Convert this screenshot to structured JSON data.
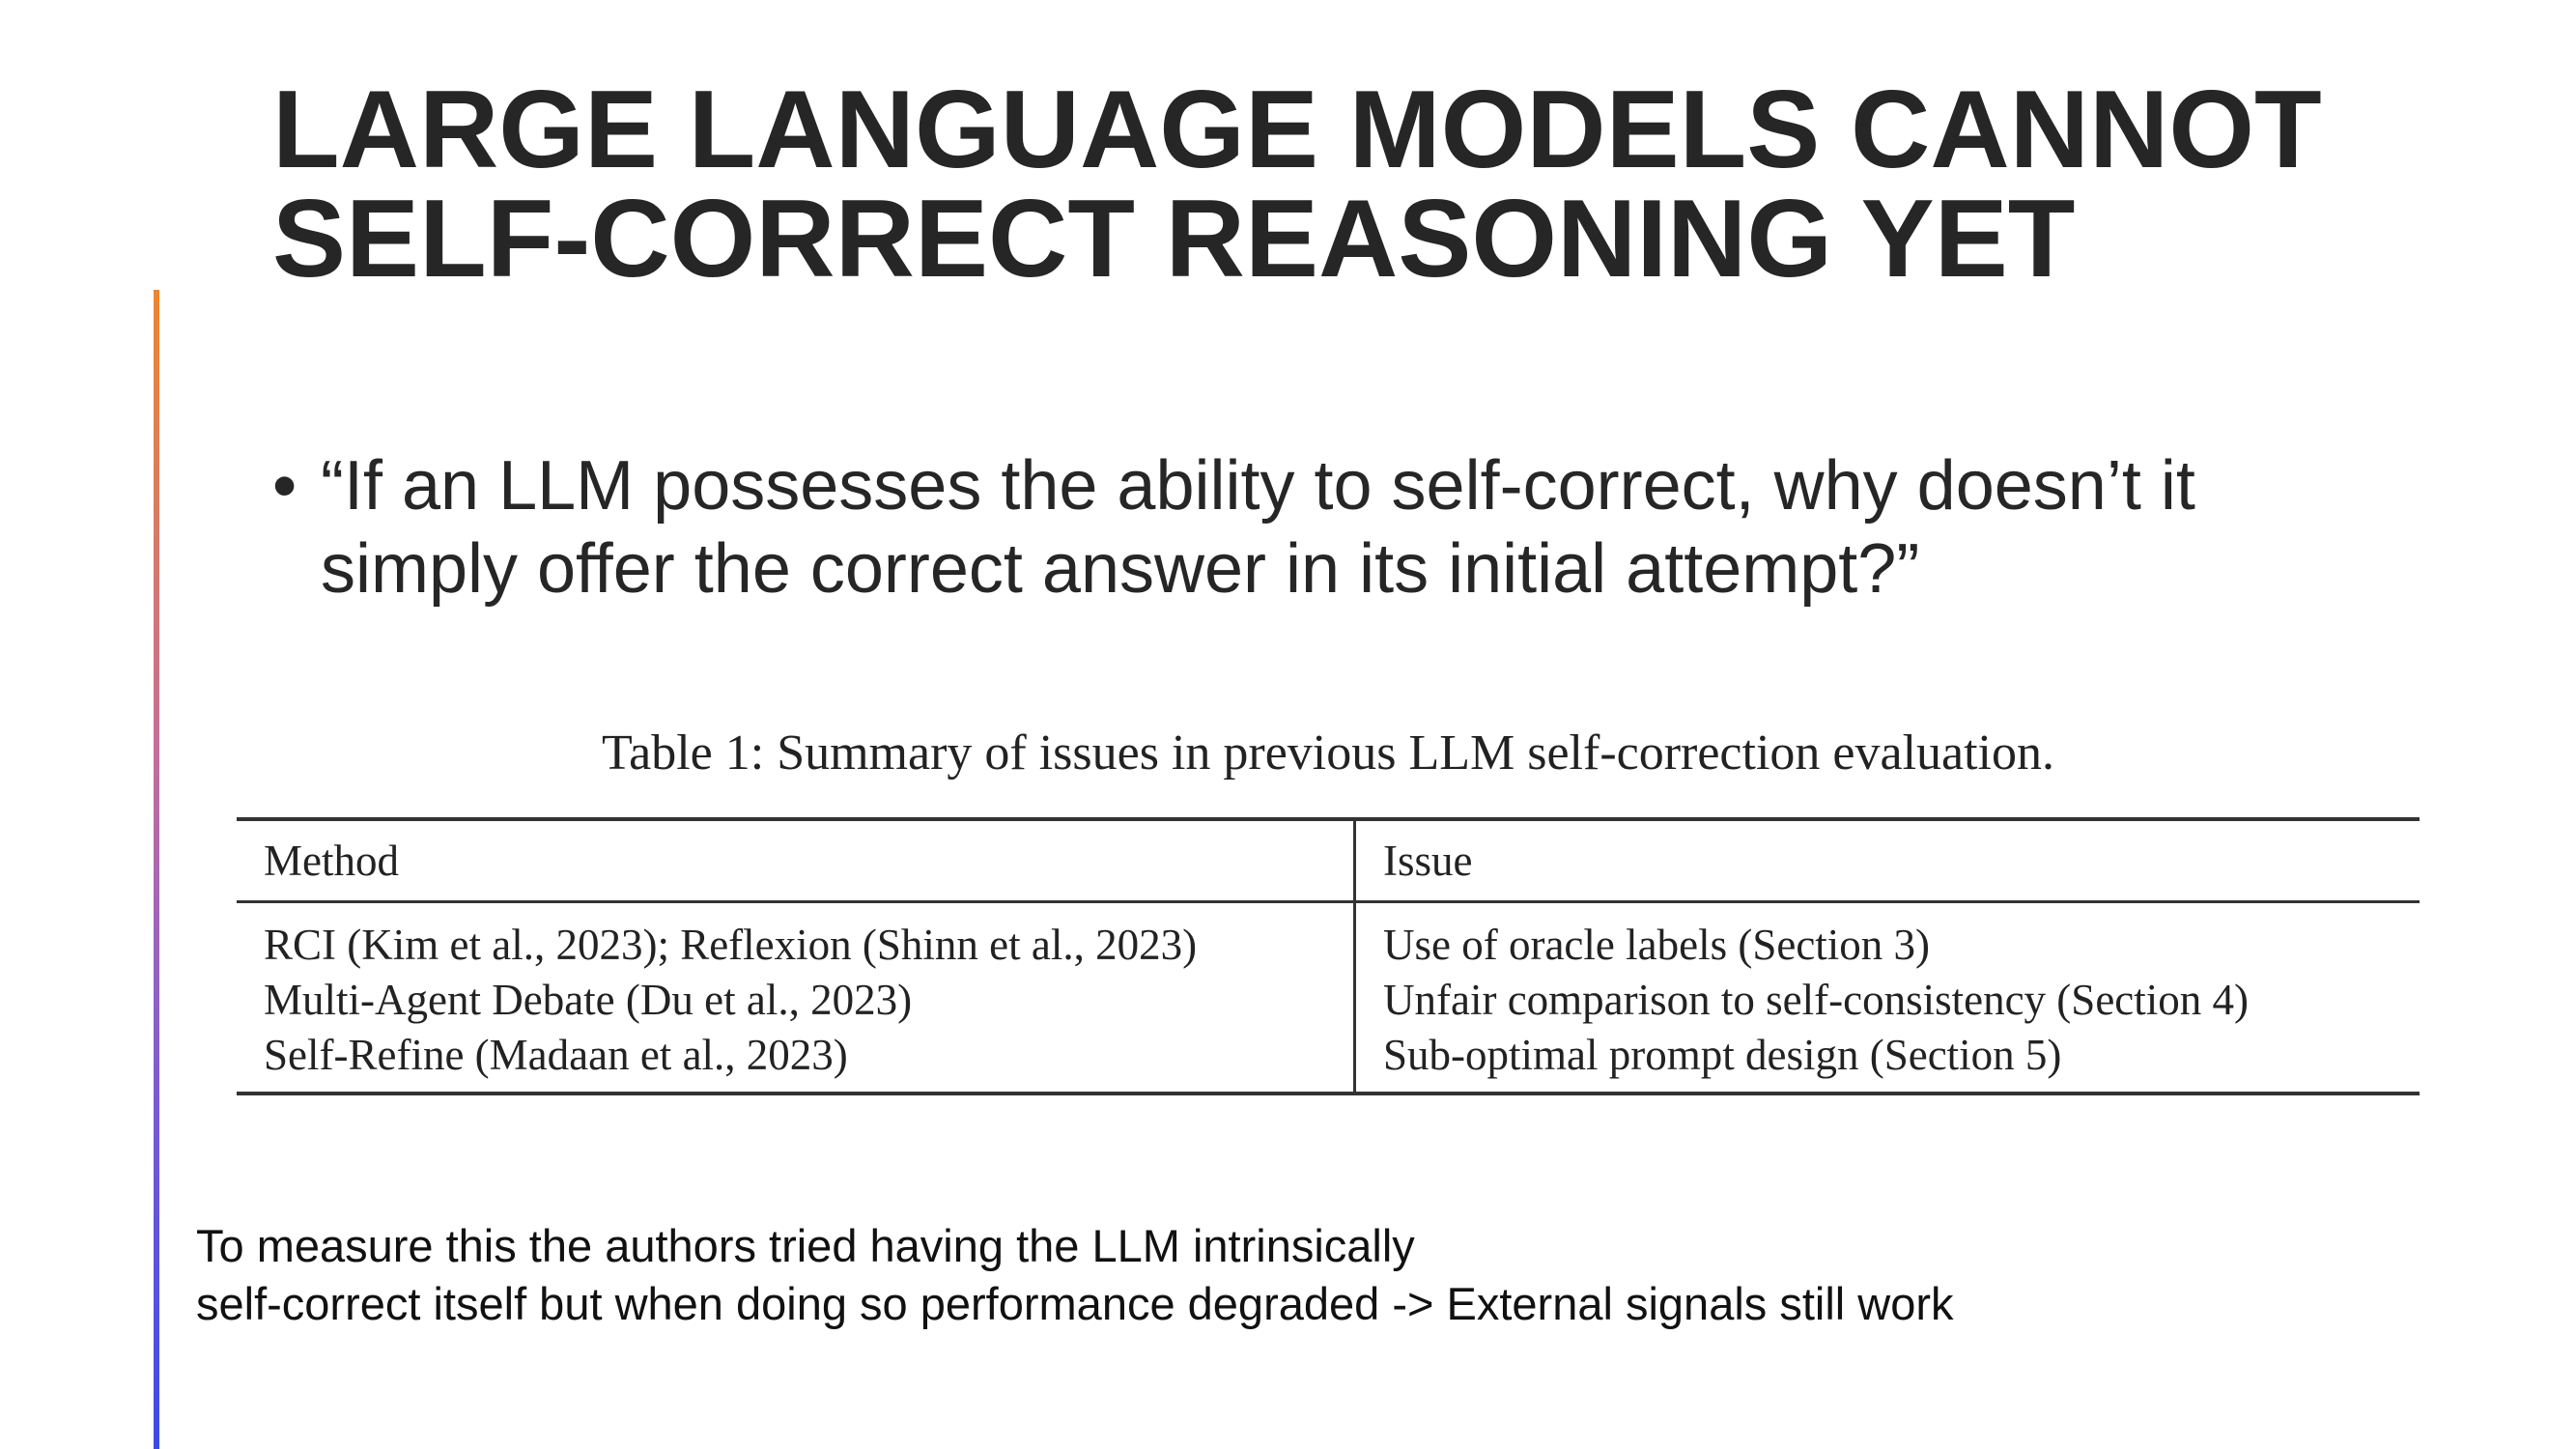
{
  "slide": {
    "title_lines": [
      "LARGE LANGUAGE MODELS CANNOT",
      "SELF-CORRECT REASONING YET"
    ],
    "bullet": {
      "marker": "•",
      "lines": [
        "“If an LLM possesses the ability to self-correct, why doesn’t it",
        "simply offer the correct answer in its initial attempt?”"
      ]
    },
    "table": {
      "caption": "Table 1: Summary of issues in previous LLM self-correction evaluation.",
      "headers": [
        "Method",
        "Issue"
      ],
      "rows": [
        [
          "RCI (Kim et al., 2023); Reflexion (Shinn et al., 2023)",
          "Use of oracle labels (Section 3)"
        ],
        [
          "Multi-Agent Debate (Du et al., 2023)",
          "Unfair comparison to self-consistency (Section 4)"
        ],
        [
          "Self-Refine (Madaan et al., 2023)",
          "Sub-optimal prompt design (Section 5)"
        ]
      ]
    },
    "note_lines": [
      "To measure this the authors tried having the LLM intrinsically",
      "self-correct itself but when doing so performance degraded -> External signals still work"
    ],
    "colors": {
      "title": "#262626",
      "accent_top": "#f0852d",
      "accent_bottom": "#3a4ae6"
    }
  }
}
